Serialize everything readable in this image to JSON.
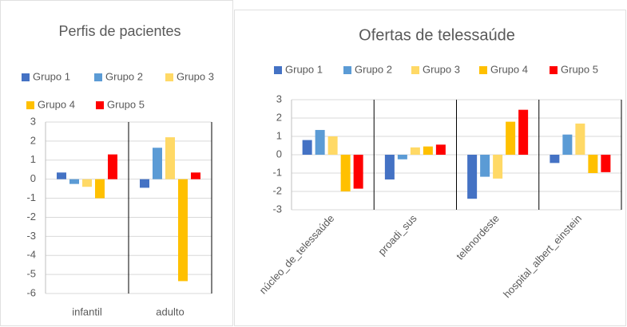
{
  "chart_data": [
    {
      "type": "bar",
      "title": "Perfis de pacientes",
      "categories": [
        "infantil",
        "adulto"
      ],
      "series": [
        {
          "name": "Grupo 1",
          "color": "#4472c4",
          "values": [
            0.35,
            -0.45
          ]
        },
        {
          "name": "Grupo 2",
          "color": "#5b9bd5",
          "values": [
            -0.25,
            1.65
          ]
        },
        {
          "name": "Grupo 3",
          "color": "#ffd966",
          "values": [
            -0.4,
            2.2
          ]
        },
        {
          "name": "Grupo 4",
          "color": "#ffc000",
          "values": [
            -1.0,
            -5.35
          ]
        },
        {
          "name": "Grupo 5",
          "color": "#ff0000",
          "values": [
            1.3,
            0.35
          ]
        }
      ],
      "ylim": [
        -6,
        3
      ],
      "yticks": [
        -6,
        -5,
        -4,
        -3,
        -2,
        -1,
        0,
        1,
        2,
        3
      ],
      "grid": true,
      "legend": "top"
    },
    {
      "type": "bar",
      "title": "Ofertas de telessaúde",
      "categories": [
        "núcleo_de_telessaúde",
        "proadi_sus",
        "telenordeste",
        "hospital_albert_einstein"
      ],
      "series": [
        {
          "name": "Grupo 1",
          "color": "#4472c4",
          "values": [
            0.8,
            -1.35,
            -2.4,
            -0.45
          ]
        },
        {
          "name": "Grupo 2",
          "color": "#5b9bd5",
          "values": [
            1.35,
            -0.25,
            -1.2,
            1.1
          ]
        },
        {
          "name": "Grupo 3",
          "color": "#ffd966",
          "values": [
            1.0,
            0.4,
            -1.3,
            1.7
          ]
        },
        {
          "name": "Grupo 4",
          "color": "#ffc000",
          "values": [
            -2.0,
            0.45,
            1.8,
            -1.0
          ]
        },
        {
          "name": "Grupo 5",
          "color": "#ff0000",
          "values": [
            -1.85,
            0.55,
            2.45,
            -0.95
          ]
        }
      ],
      "ylim": [
        -3,
        3
      ],
      "yticks": [
        -3,
        -2,
        -1,
        0,
        1,
        2,
        3
      ],
      "grid": true,
      "legend": "top"
    }
  ]
}
